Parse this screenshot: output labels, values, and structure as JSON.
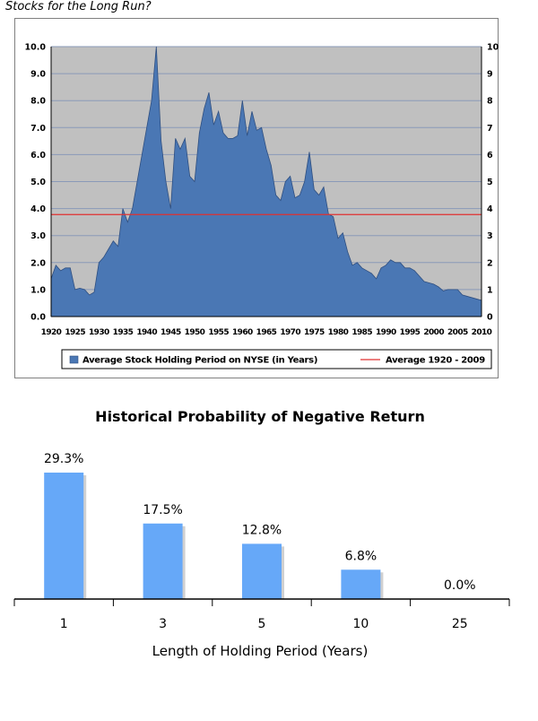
{
  "page": {
    "title": "Stocks for the Long Run?"
  },
  "chart_data": [
    {
      "type": "area",
      "title": "",
      "xlabel": "",
      "ylabel": "",
      "x_tick_labels": [
        "1920",
        "1925",
        "1930",
        "1935",
        "1940",
        "1945",
        "1950",
        "1955",
        "1960",
        "1965",
        "1970",
        "1975",
        "1980",
        "1985",
        "1990",
        "1995",
        "2000",
        "2005",
        "2010"
      ],
      "xlim": [
        1920,
        2010
      ],
      "ylim": [
        0,
        10
      ],
      "y_left_ticks": [
        "0.0",
        "1.0",
        "2.0",
        "3.0",
        "4.0",
        "5.0",
        "6.0",
        "7.0",
        "8.0",
        "9.0",
        "10.0"
      ],
      "y_right_ticks": [
        "0",
        "1",
        "2",
        "3",
        "4",
        "5",
        "6",
        "7",
        "8",
        "9",
        "10"
      ],
      "grid": true,
      "legend_position": "bottom",
      "colors": {
        "area": "#4a77b4",
        "area_edge": "#2f4f80",
        "average_line": "#e03030",
        "plot_bg": "#c0c0c0"
      },
      "series": [
        {
          "name": "Average Stock Holding Period on NYSE (in Years)",
          "x": [
            1920,
            1921,
            1922,
            1923,
            1924,
            1925,
            1926,
            1927,
            1928,
            1929,
            1930,
            1931,
            1932,
            1933,
            1934,
            1935,
            1936,
            1937,
            1938,
            1939,
            1940,
            1941,
            1942,
            1943,
            1944,
            1945,
            1946,
            1947,
            1948,
            1949,
            1950,
            1951,
            1952,
            1953,
            1954,
            1955,
            1956,
            1957,
            1958,
            1959,
            1960,
            1961,
            1962,
            1963,
            1964,
            1965,
            1966,
            1967,
            1968,
            1969,
            1970,
            1971,
            1972,
            1973,
            1974,
            1975,
            1976,
            1977,
            1978,
            1979,
            1980,
            1981,
            1982,
            1983,
            1984,
            1985,
            1986,
            1987,
            1988,
            1989,
            1990,
            1991,
            1992,
            1993,
            1994,
            1995,
            1996,
            1997,
            1998,
            1999,
            2000,
            2001,
            2002,
            2003,
            2004,
            2005,
            2006,
            2007,
            2008,
            2009,
            2010
          ],
          "values": [
            1.4,
            1.9,
            1.7,
            1.8,
            1.8,
            1.0,
            1.05,
            1.0,
            0.8,
            0.9,
            2.0,
            2.2,
            2.5,
            2.8,
            2.6,
            4.0,
            3.5,
            4.0,
            5.0,
            6.0,
            7.0,
            8.0,
            10.0,
            6.5,
            5.0,
            4.0,
            6.6,
            6.2,
            6.6,
            5.2,
            5.0,
            6.8,
            7.7,
            8.3,
            7.1,
            7.6,
            6.8,
            6.6,
            6.6,
            6.7,
            8.0,
            6.7,
            7.6,
            6.9,
            7.0,
            6.2,
            5.6,
            4.5,
            4.3,
            5.0,
            5.2,
            4.4,
            4.5,
            5.0,
            6.1,
            4.7,
            4.5,
            4.8,
            3.8,
            3.7,
            2.9,
            3.1,
            2.4,
            1.9,
            2.0,
            1.8,
            1.7,
            1.6,
            1.4,
            1.8,
            1.9,
            2.1,
            2.0,
            2.0,
            1.8,
            1.8,
            1.7,
            1.5,
            1.3,
            1.25,
            1.2,
            1.1,
            0.95,
            1.0,
            1.0,
            1.0,
            0.8,
            0.75,
            0.7,
            0.65,
            0.6
          ]
        },
        {
          "name": "Average 1920 - 2009",
          "constant": 3.78
        }
      ]
    },
    {
      "type": "bar",
      "title": "Historical Probability of Negative Return",
      "xlabel": "Length of Holding Period (Years)",
      "ylabel": "",
      "categories": [
        "1",
        "3",
        "5",
        "10",
        "25"
      ],
      "values": [
        29.3,
        17.5,
        12.8,
        6.8,
        0.0
      ],
      "data_labels": [
        "29.3%",
        "17.5%",
        "12.8%",
        "6.8%",
        "0.0%"
      ],
      "ylim": [
        0,
        31
      ],
      "colors": {
        "bar": "#66a8f8",
        "bar_shadow": "#d0d0d0"
      }
    }
  ]
}
